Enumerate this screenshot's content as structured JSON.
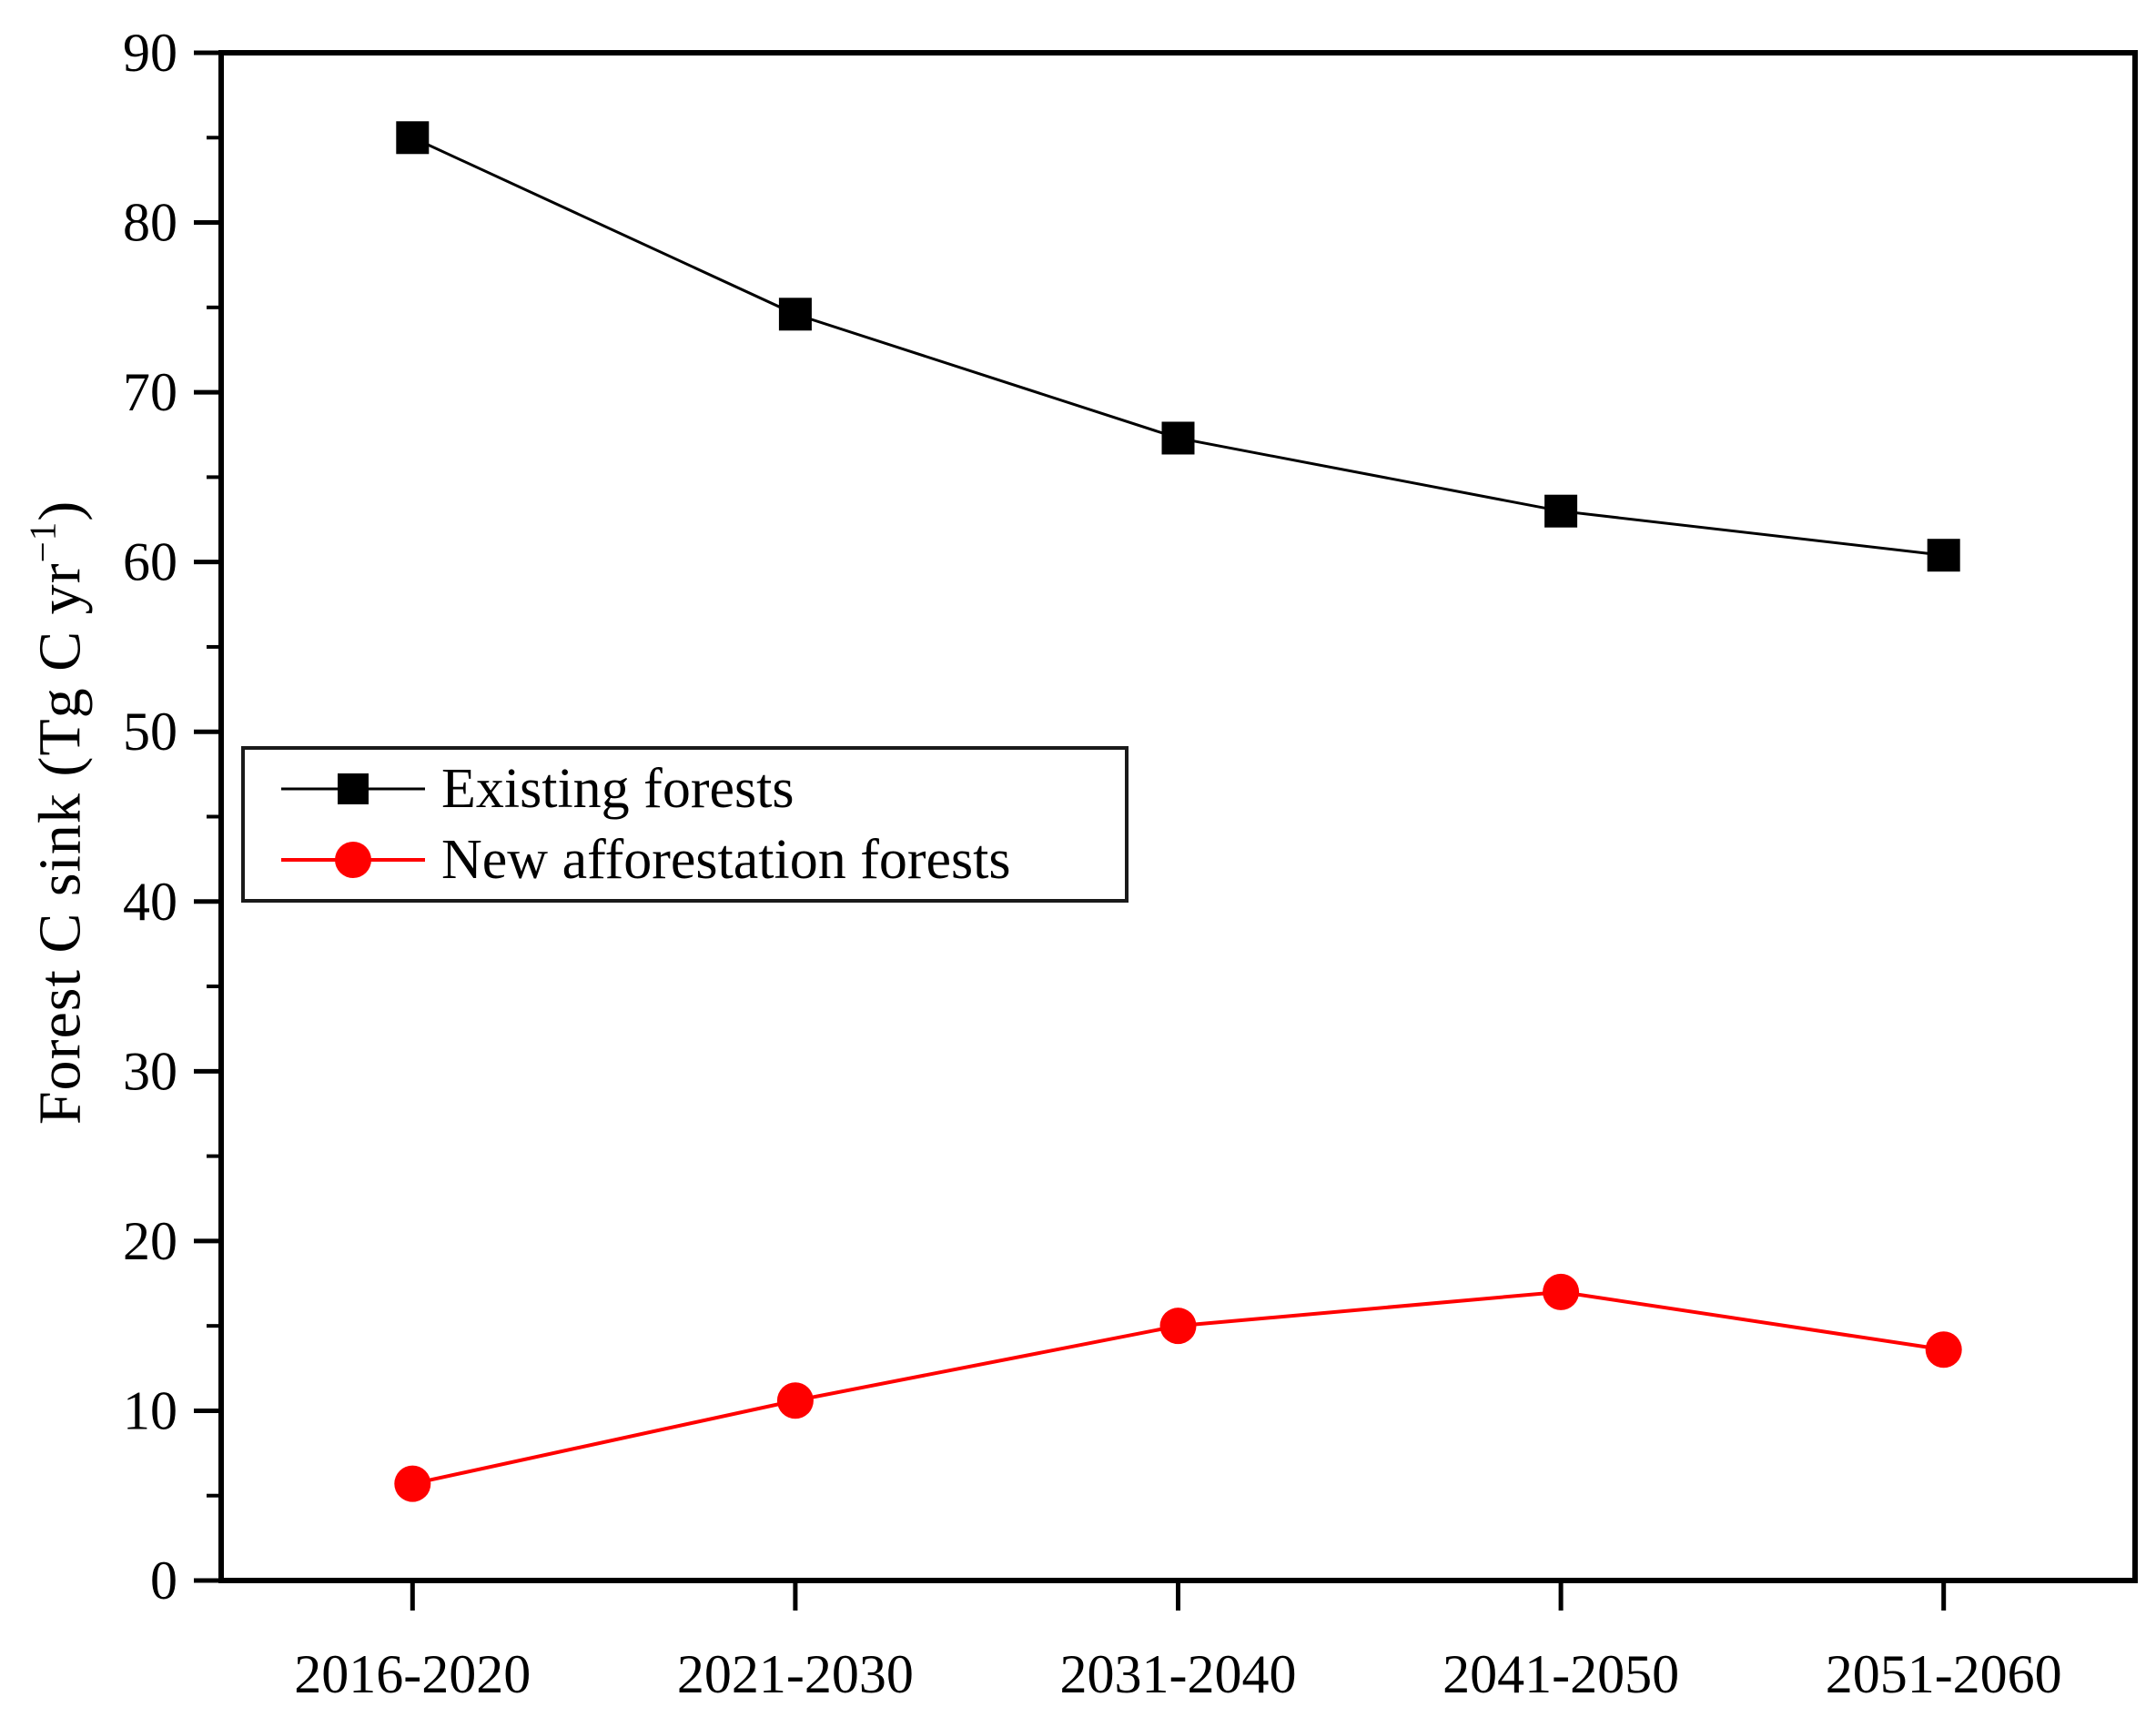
{
  "figure": {
    "background": "#ffffff"
  },
  "chart_data": {
    "type": "line",
    "title": "",
    "categories": [
      "2016-2020",
      "2021-2030",
      "2031-2040",
      "2041-2050",
      "2051-2060"
    ],
    "series": [
      {
        "name": "Existing forests",
        "color": "#000000",
        "marker": "square",
        "line_width": 3,
        "values": [
          85.0,
          74.6,
          67.3,
          63.0,
          60.4
        ]
      },
      {
        "name": "New afforestation forests",
        "color": "#ff0000",
        "marker": "circle",
        "line_width": 4,
        "values": [
          5.7,
          10.6,
          15.0,
          17.0,
          13.6
        ]
      }
    ],
    "xlabel": "",
    "ylabel": "Forest C sink (Tg C yr⁻¹)",
    "ylabel_parts": {
      "pre": "Forest C sink (Tg C yr",
      "sup": "−1",
      "post": ")"
    },
    "ylim": [
      0,
      90
    ],
    "y_ticks": [
      0,
      10,
      20,
      30,
      40,
      50,
      60,
      70,
      80,
      90
    ],
    "y_minor_step": 5,
    "grid": false,
    "legend_position": "upper-left-inside",
    "axis_color": "#000000"
  },
  "legend": {
    "entries": [
      {
        "label": "Existing forests",
        "marker": "square",
        "color": "#000000"
      },
      {
        "label": "New afforestation forests",
        "marker": "circle",
        "color": "#ff0000"
      }
    ]
  }
}
